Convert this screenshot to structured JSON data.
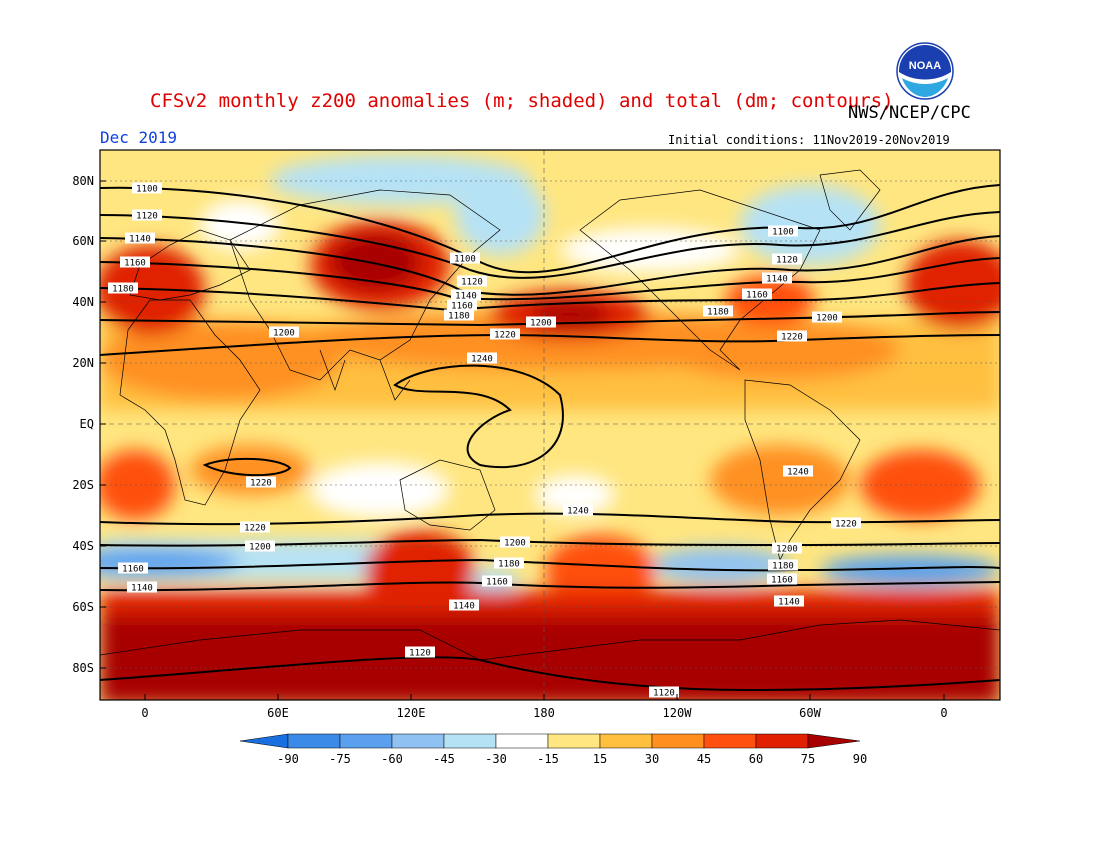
{
  "header": {
    "title": "CFSv2 monthly z200 anomalies (m; shaded) and total (dm; contours)",
    "agency": "NWS/NCEP/CPC",
    "month": "Dec 2019",
    "initial_conditions": "Initial conditions: 11Nov2019-20Nov2019",
    "logo_text": "NOAA"
  },
  "axes": {
    "lat_labels": [
      "80N",
      "60N",
      "40N",
      "20N",
      "EQ",
      "20S",
      "40S",
      "60S",
      "80S"
    ],
    "lon_labels": [
      "0",
      "60E",
      "120E",
      "180",
      "120W",
      "60W",
      "0"
    ]
  },
  "colorbar": {
    "labels": [
      "-90",
      "-75",
      "-60",
      "-45",
      "-30",
      "-15",
      "15",
      "30",
      "45",
      "60",
      "75",
      "90"
    ],
    "colors": [
      "#1a6fe0",
      "#3b8ae8",
      "#5aa0ee",
      "#8fc2f2",
      "#b6e2f5",
      "#ffffff",
      "#ffe680",
      "#ffc040",
      "#ff9020",
      "#ff5010",
      "#e02000",
      "#a80000"
    ]
  },
  "contour_labels": [
    {
      "text": "1100"
    },
    {
      "text": "1120"
    },
    {
      "text": "1140"
    },
    {
      "text": "1160"
    },
    {
      "text": "1180"
    },
    {
      "text": "1200"
    },
    {
      "text": "1220"
    },
    {
      "text": "1240"
    },
    {
      "text": "1100"
    },
    {
      "text": "1120"
    },
    {
      "text": "1140"
    },
    {
      "text": "1160"
    },
    {
      "text": "1180"
    },
    {
      "text": "1200"
    },
    {
      "text": "1220"
    },
    {
      "text": "1240"
    },
    {
      "text": "1100"
    },
    {
      "text": "1120"
    },
    {
      "text": "1140"
    },
    {
      "text": "1160"
    },
    {
      "text": "1180"
    },
    {
      "text": "1200"
    },
    {
      "text": "1220"
    },
    {
      "text": "1240"
    },
    {
      "text": "1220"
    },
    {
      "text": "1200"
    },
    {
      "text": "1160"
    },
    {
      "text": "1140"
    },
    {
      "text": "1120"
    },
    {
      "text": "1120"
    },
    {
      "text": "1200"
    },
    {
      "text": "1180"
    },
    {
      "text": "1160"
    },
    {
      "text": "1140"
    },
    {
      "text": "1220"
    },
    {
      "text": "1200"
    },
    {
      "text": "1180"
    },
    {
      "text": "1160"
    },
    {
      "text": "1140"
    },
    {
      "text": "1220"
    },
    {
      "text": "1240"
    },
    {
      "text": "1220"
    },
    {
      "text": "1200"
    },
    {
      "text": "1180"
    },
    {
      "text": "1160"
    },
    {
      "text": "1140"
    }
  ]
}
